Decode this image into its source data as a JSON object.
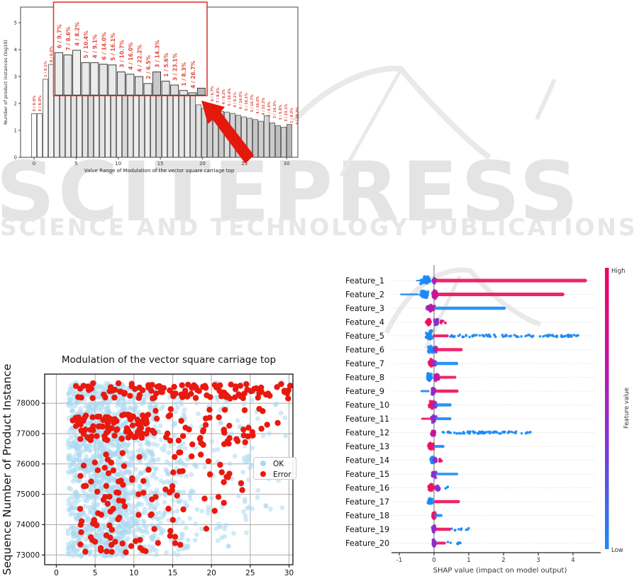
{
  "watermark": {
    "brand": "SCITEPRESS",
    "tagline": "SCIENCE AND TECHNOLOGY PUBLICATIONS",
    "brand_color": "#e4e4e4",
    "tagline_color": "#e7e7e7",
    "shape_color": "#e9e9e9"
  },
  "chart_data": [
    {
      "type": "bar",
      "name": "value-range-histogram",
      "xlabel": "Value Range of Modulation of the vector square carriage top",
      "ylabel": "Number of product instances (log10)",
      "xticks": [
        0,
        5,
        10,
        15,
        20,
        25,
        30
      ],
      "yticks": [
        0,
        1,
        2,
        3,
        4,
        5
      ],
      "ylim": [
        0,
        5.6
      ],
      "bar_values": [
        1.62,
        1.62,
        2.9,
        3.45,
        3.9,
        3.83,
        3.76,
        3.7,
        3.64,
        3.58,
        3.52,
        3.46,
        3.4,
        3.34,
        3.28,
        3.22,
        3.16,
        3.1,
        3.04,
        2.98,
        2.92,
        2.86,
        2.8,
        2.74,
        2.68,
        2.62,
        2.55,
        2.48,
        2.35,
        1.95,
        1.82,
        1.76,
        1.72,
        1.7,
        1.68,
        1.63,
        1.56,
        1.5,
        1.45,
        1.4,
        1.34,
        1.55,
        1.28,
        1.18,
        1.12,
        1.22
      ],
      "bar_fills": [
        "#fbfbfb",
        "#fbfbfb",
        "#f7f7f7",
        "#f2f2f2",
        "#ededed",
        "#e4e4e4",
        "#ededed",
        "#e4e4e4",
        "#ededed",
        "#e4e4e4",
        "#d9d9d9",
        "#ededed",
        "#e4e4e4",
        "#ededed",
        "#e4e4e4",
        "#ededed",
        "#d9d9d9",
        "#e4e4e4",
        "#ededed",
        "#e4e4e4",
        "#ededed",
        "#e4e4e4",
        "#d9d9d9",
        "#ededed",
        "#e4e4e4",
        "#ededed",
        "#e4e4e4",
        "#ededed",
        "#e0e0e0",
        "#e2e2e2",
        "#d7d7d7",
        "#cfcfcf",
        "#d8d8d8",
        "#c9c9c9",
        "#dedede",
        "#d3d3d3",
        "#cbcbcb",
        "#d9d9d9",
        "#d0d0d0",
        "#c6c6c6",
        "#cdcdcd",
        "#d5d5d5",
        "#c9c9c9",
        "#c0c0c0",
        "#cfcfcf",
        "#b6b6b6"
      ],
      "left_bar_labels": [
        "3 / 6.0%",
        "3 / 6.0%",
        "1 / 0.1%",
        "6 / 0.0%"
      ],
      "callout_labels": [
        "6 / 9.7%",
        "7 / 8.6%",
        "4 / 8.2%",
        "5 / 10.4%",
        "4 / 9.1%",
        "6 / 14.0%",
        "5 / 16.1%",
        "3 / 10.7%",
        "4 / 16.0%",
        "4 / 22.2%",
        "2 / 6.5%",
        "3 / 14.3%",
        "1 / 5.6%",
        "3 / 23.1%",
        "1 / 8.3%",
        "4 / 26.7%"
      ],
      "inset": {
        "rel_heights": [
          0.55,
          0.52,
          0.58,
          0.42,
          0.42,
          0.4,
          0.39,
          0.3,
          0.27,
          0.24,
          0.15,
          0.3,
          0.18,
          0.13,
          0.06,
          0.03,
          0.09
        ],
        "fills": [
          "#ececec",
          "#e7e7e7",
          "#efefef",
          "#e9e9e9",
          "#ececec",
          "#e6e6e6",
          "#eaeaea",
          "#e4e4e4",
          "#e8e8e8",
          "#e2e2e2",
          "#e6e6e6",
          "#c9c9c9",
          "#e3e3e3",
          "#dedede",
          "#e7e7e7",
          "#e1e1e1",
          "#b9b9b9"
        ]
      },
      "label_color": "#e04b42",
      "inset_border_color": "#dc3a30",
      "arrow_color": "#e5180c"
    },
    {
      "type": "scatter",
      "name": "ok-error-scatter",
      "title": "Modulation of the vector square carriage top",
      "ylabel": "Sequence Number of Product Instance",
      "xticks": [
        0,
        5,
        10,
        15,
        20,
        25,
        30
      ],
      "yticks": [
        73000,
        74000,
        75000,
        76000,
        77000,
        78000
      ],
      "xlim": [
        -1.5,
        30.5
      ],
      "ylim": [
        72680,
        78960
      ],
      "grid": true,
      "legend": [
        {
          "label": "OK",
          "color": "#a9d8f0"
        },
        {
          "label": "Error",
          "color": "#e9190f"
        }
      ],
      "series": [
        {
          "name": "OK",
          "color": "#a9d8f0",
          "opacity": 0.55,
          "r": 3.4,
          "clusters": [
            {
              "n": 850,
              "x": [
                1.5,
                9
              ],
              "y": [
                72950,
                78680
              ]
            },
            {
              "n": 420,
              "x": [
                4,
                13
              ],
              "y": [
                72950,
                78650
              ]
            },
            {
              "n": 210,
              "x": [
                9,
                17
              ],
              "y": [
                73000,
                78600
              ]
            },
            {
              "n": 120,
              "x": [
                13,
                26
              ],
              "y": [
                73200,
                78680
              ]
            },
            {
              "n": 40,
              "x": [
                20,
                30
              ],
              "y": [
                74500,
                78700
              ]
            }
          ]
        },
        {
          "name": "Error",
          "color": "#e9190f",
          "opacity": 1,
          "r": 4.2,
          "clusters": [
            {
              "n": 115,
              "x": [
                2.5,
                30.2
              ],
              "y": [
                78150,
                78660
              ]
            },
            {
              "n": 85,
              "x": [
                2,
                12.5
              ],
              "y": [
                76780,
                77640
              ]
            },
            {
              "n": 42,
              "x": [
                12.5,
                26
              ],
              "y": [
                76600,
                77820
              ]
            },
            {
              "n": 60,
              "x": [
                3,
                9
              ],
              "y": [
                73050,
                76500
              ]
            },
            {
              "n": 34,
              "x": [
                9,
                16
              ],
              "y": [
                73100,
                76400
              ]
            },
            {
              "n": 22,
              "x": [
                15,
                24
              ],
              "y": [
                73300,
                76350
              ]
            },
            {
              "n": 8,
              "x": [
                24,
                30
              ],
              "y": [
                76800,
                77850
              ]
            }
          ]
        }
      ]
    },
    {
      "type": "scatter",
      "subtype": "shap-beeswarm",
      "name": "shap-summary",
      "xlabel": "SHAP value (impact on model output)",
      "xticks": [
        -1,
        0,
        1,
        2,
        3,
        4
      ],
      "colorbar": {
        "high": "High",
        "low": "Low",
        "label": "Feature value",
        "stops": [
          "#f1045c",
          "#c313a8",
          "#7a3bdd",
          "#1b8af5"
        ]
      },
      "palette": {
        "r": "#ee1160",
        "b": "#1b8af5",
        "p": "#8b2fc9",
        "m": "#c0189c"
      },
      "features": [
        {
          "label": "Feature_1",
          "marks": [
            [
              "bar",
              -0.5,
              -0.3,
              "b",
              2
            ],
            [
              "blob",
              -0.24,
              0.16,
              7,
              "b"
            ],
            [
              "blob",
              0.01,
              0.04,
              5,
              "p"
            ],
            [
              "bar",
              0.06,
              4.35,
              "r",
              5
            ]
          ]
        },
        {
          "label": "Feature_2",
          "marks": [
            [
              "bar",
              -0.95,
              -0.45,
              "b",
              2.5
            ],
            [
              "blob",
              -0.28,
              0.13,
              7,
              "b"
            ],
            [
              "blob",
              0.02,
              0.07,
              8,
              "m"
            ],
            [
              "bar",
              0.1,
              3.7,
              "r",
              5
            ]
          ]
        },
        {
          "label": "Feature_3",
          "marks": [
            [
              "blob",
              -0.16,
              0.05,
              4,
              "p"
            ],
            [
              "blob",
              -0.07,
              0.09,
              6,
              "m"
            ],
            [
              "bar",
              0.05,
              2.02,
              "b",
              4.5
            ]
          ]
        },
        {
          "label": "Feature_4",
          "marks": [
            [
              "blob",
              -0.16,
              0.07,
              6,
              "r"
            ],
            [
              "blob",
              0.07,
              0.06,
              6,
              "p"
            ],
            [
              "dots",
              0.18,
              0.33,
              "r",
              5,
              2
            ]
          ]
        },
        {
          "label": "Feature_5",
          "marks": [
            [
              "blob",
              -0.14,
              0.11,
              8,
              "b"
            ],
            [
              "bar",
              0.0,
              0.38,
              "r",
              4
            ],
            [
              "dots",
              0.45,
              4.2,
              "b",
              85,
              1.8
            ]
          ]
        },
        {
          "label": "Feature_6",
          "marks": [
            [
              "blob",
              -0.08,
              0.09,
              7,
              "b"
            ],
            [
              "blob",
              0.04,
              0.04,
              5,
              "p"
            ],
            [
              "bar",
              0.1,
              0.78,
              "r",
              4.5
            ]
          ]
        },
        {
          "label": "Feature_7",
          "marks": [
            [
              "blob",
              -0.08,
              0.08,
              6.5,
              "r"
            ],
            [
              "blob",
              0.02,
              0.04,
              4,
              "p"
            ],
            [
              "bar",
              0.08,
              0.65,
              "b",
              4.5
            ]
          ]
        },
        {
          "label": "Feature_8",
          "marks": [
            [
              "blob",
              -0.13,
              0.1,
              6.5,
              "b"
            ],
            [
              "blob",
              0.07,
              0.08,
              7,
              "m"
            ],
            [
              "bar",
              0.17,
              0.6,
              "r",
              4
            ]
          ]
        },
        {
          "label": "Feature_9",
          "marks": [
            [
              "bar",
              -0.36,
              -0.16,
              "b",
              3
            ],
            [
              "blob",
              -0.02,
              0.07,
              6.5,
              "p"
            ],
            [
              "bar",
              0.08,
              0.66,
              "r",
              4.5
            ]
          ]
        },
        {
          "label": "Feature_10",
          "marks": [
            [
              "blob",
              -0.07,
              0.08,
              6.5,
              "r"
            ],
            [
              "blob",
              0.03,
              0.04,
              5,
              "p"
            ],
            [
              "bar",
              0.08,
              0.46,
              "b",
              4.5
            ]
          ]
        },
        {
          "label": "Feature_11",
          "marks": [
            [
              "bar",
              -0.34,
              -0.12,
              "r",
              3
            ],
            [
              "blob",
              0.0,
              0.07,
              6,
              "p"
            ],
            [
              "bar",
              0.08,
              0.46,
              "b",
              4
            ]
          ]
        },
        {
          "label": "Feature_12",
          "marks": [
            [
              "blob",
              -0.02,
              0.06,
              6,
              "m"
            ],
            [
              "dots",
              0.25,
              2.78,
              "b",
              70,
              1.8
            ]
          ]
        },
        {
          "label": "Feature_13",
          "marks": [
            [
              "blob",
              -0.09,
              0.08,
              6,
              "r"
            ],
            [
              "bar",
              0.03,
              0.26,
              "b",
              4
            ]
          ]
        },
        {
          "label": "Feature_14",
          "marks": [
            [
              "blob",
              -0.04,
              0.07,
              6.5,
              "b"
            ],
            [
              "blob",
              0.03,
              0.04,
              5,
              "p"
            ],
            [
              "dots",
              0.1,
              0.28,
              "r",
              6,
              2
            ]
          ]
        },
        {
          "label": "Feature_15",
          "marks": [
            [
              "blob",
              0.0,
              0.06,
              6,
              "p"
            ],
            [
              "bar",
              0.08,
              0.66,
              "b",
              3.5
            ]
          ]
        },
        {
          "label": "Feature_16",
          "marks": [
            [
              "blob",
              -0.08,
              0.08,
              6,
              "r"
            ],
            [
              "blob",
              0.1,
              0.07,
              6,
              "p"
            ],
            [
              "dots",
              0.25,
              0.45,
              "b",
              3,
              1.8
            ]
          ]
        },
        {
          "label": "Feature_17",
          "marks": [
            [
              "blob",
              -0.1,
              0.09,
              6.5,
              "b"
            ],
            [
              "bar",
              0.04,
              0.7,
              "r",
              4.5
            ]
          ]
        },
        {
          "label": "Feature_18",
          "marks": [
            [
              "blob",
              0.0,
              0.05,
              6,
              "r"
            ],
            [
              "bar",
              0.04,
              0.2,
              "b",
              4
            ]
          ]
        },
        {
          "label": "Feature_19",
          "marks": [
            [
              "bar",
              0.0,
              0.45,
              "r",
              4.5
            ],
            [
              "blob",
              0.0,
              0.05,
              6,
              "p"
            ],
            [
              "dots",
              0.5,
              1.05,
              "b",
              9,
              1.8
            ]
          ]
        },
        {
          "label": "Feature_20",
          "marks": [
            [
              "bar",
              0.0,
              0.3,
              "r",
              4
            ],
            [
              "blob",
              0.0,
              0.05,
              6.5,
              "p"
            ],
            [
              "dots",
              0.35,
              0.78,
              "b",
              7,
              1.8
            ]
          ]
        }
      ]
    }
  ]
}
